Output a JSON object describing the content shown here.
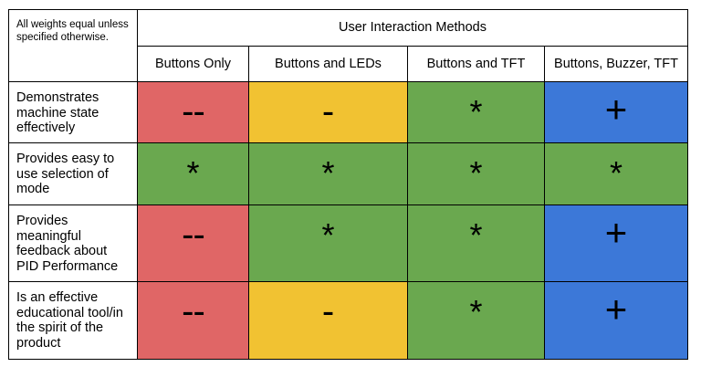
{
  "note": "All weights equal unless specified otherwise.",
  "group_header": "User Interaction Methods",
  "colors": {
    "red": "#e06666",
    "yellow": "#f1c232",
    "green": "#6aa84f",
    "blue": "#3c78d8"
  },
  "columns": [
    "Buttons Only",
    "Buttons and LEDs",
    "Buttons and TFT",
    "Buttons, Buzzer, TFT"
  ],
  "rows": [
    {
      "criterion": "Demonstrates machine state effectively",
      "ratings": [
        "--",
        "-",
        "*",
        "+"
      ],
      "colors": [
        "red",
        "yellow",
        "green",
        "blue"
      ]
    },
    {
      "criterion": "Provides easy to use selection of mode",
      "ratings": [
        "*",
        "*",
        "*",
        "*"
      ],
      "colors": [
        "green",
        "green",
        "green",
        "green"
      ]
    },
    {
      "criterion": "Provides meaningful feedback about PID Performance",
      "ratings": [
        "--",
        "*",
        "*",
        "+"
      ],
      "colors": [
        "red",
        "green",
        "green",
        "blue"
      ]
    },
    {
      "criterion": "Is an effective educational tool/in the spirit of the product",
      "ratings": [
        "--",
        "-",
        "*",
        "+"
      ],
      "colors": [
        "red",
        "yellow",
        "green",
        "blue"
      ]
    }
  ]
}
